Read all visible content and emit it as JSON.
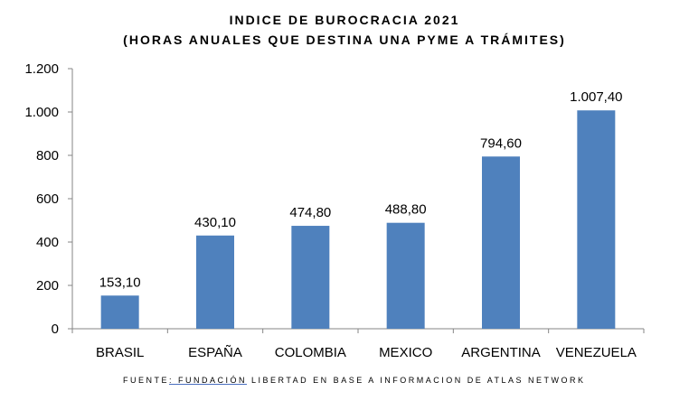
{
  "chart_data": {
    "type": "bar",
    "title": "INDICE DE BUROCRACIA 2021",
    "subtitle": "(HORAS ANUALES QUE DESTINA UNA PYME A TRÁMITES)",
    "categories": [
      "BRASIL",
      "ESPAÑA",
      "COLOMBIA",
      "MEXICO",
      "ARGENTINA",
      "VENEZUELA"
    ],
    "values": [
      153.1,
      430.1,
      474.8,
      488.8,
      794.6,
      1007.4
    ],
    "data_labels": [
      "153,10",
      "430,10",
      "474,80",
      "488,80",
      "794,60",
      "1.007,40"
    ],
    "ylim": [
      0,
      1200
    ],
    "yticks": [
      0,
      200,
      400,
      600,
      800,
      1000,
      1200
    ],
    "ytick_labels": [
      "0",
      "200",
      "400",
      "600",
      "800",
      "1.000",
      "1.200"
    ],
    "xlabel": "",
    "ylabel": "",
    "grid": false,
    "bar_color": "#4f81bd"
  },
  "source": {
    "prefix": "FUENTE",
    "highlight": ": FUNDACIÓN",
    "rest": " LIBERTAD EN BASE A INFORMACION DE ATLAS NETWORK"
  }
}
